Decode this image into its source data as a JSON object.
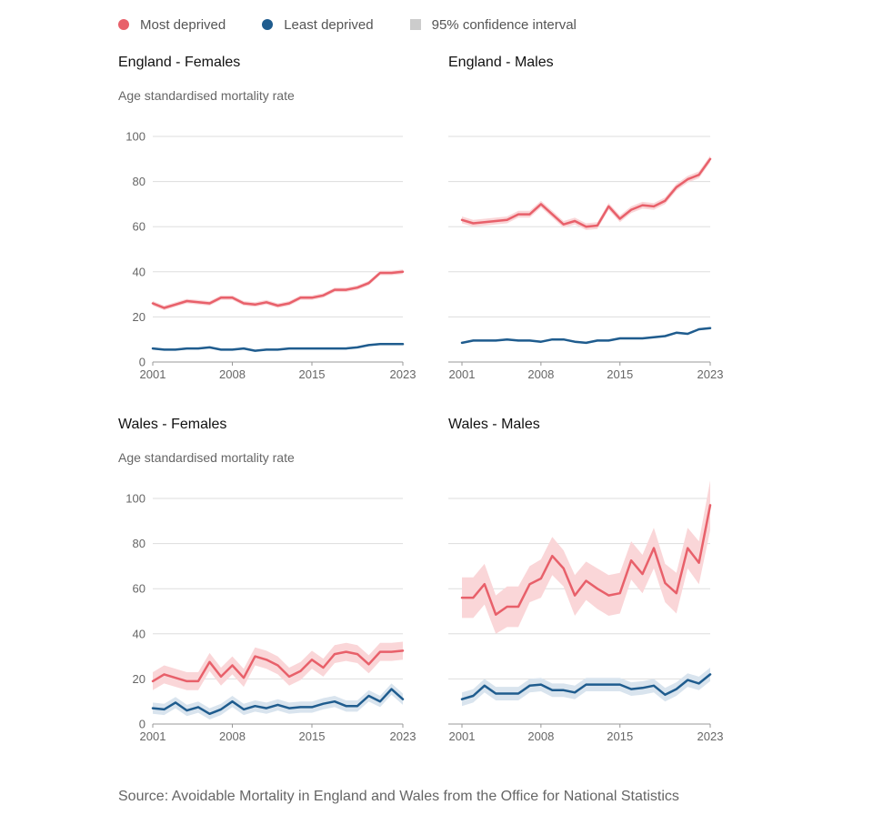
{
  "legend": {
    "items": [
      {
        "label": "Most deprived",
        "color": "#E8606A",
        "shape": "circle"
      },
      {
        "label": "Least deprived",
        "color": "#1F5C8E",
        "shape": "circle"
      },
      {
        "label": "95% confidence interval",
        "color": "#CCCCCC",
        "shape": "square"
      }
    ]
  },
  "colors": {
    "most_line": "#E8606A",
    "most_band": "#FAD6D8",
    "least_line": "#1F5C8E",
    "least_band": "#D9E4EE",
    "grid": "#DDDDDD",
    "axis": "#999999"
  },
  "source": "Source: Avoidable Mortality in England and Wales from the Office for National Statistics",
  "chart_data": [
    {
      "type": "line",
      "title": "England - Females",
      "ylabel": "Age standardised mortality rate",
      "ylim": [
        0,
        100
      ],
      "yticks": [
        0,
        20,
        40,
        60,
        80,
        100
      ],
      "xlim": [
        2001,
        2023
      ],
      "xticks": [
        "2001",
        "2008",
        "2015",
        "2023"
      ],
      "x": [
        2001,
        2002,
        2003,
        2004,
        2005,
        2006,
        2007,
        2008,
        2009,
        2010,
        2011,
        2012,
        2013,
        2014,
        2015,
        2016,
        2017,
        2018,
        2019,
        2020,
        2021,
        2022,
        2023
      ],
      "series": [
        {
          "name": "Most deprived",
          "values": [
            26,
            24,
            25.5,
            27,
            26.5,
            26,
            28.5,
            28.5,
            26,
            25.5,
            26.5,
            25,
            26,
            28.5,
            28.5,
            29.5,
            32,
            32,
            33,
            35,
            39.5,
            39.5,
            40
          ],
          "lower": [
            25,
            23,
            24.5,
            26,
            25.5,
            25,
            27.5,
            27.5,
            25,
            24.5,
            25.5,
            24,
            25,
            27.5,
            27.5,
            28.5,
            31,
            31,
            32,
            34,
            38.5,
            38.5,
            39
          ],
          "upper": [
            27,
            25,
            26.5,
            28,
            27.5,
            27,
            29.5,
            29.5,
            27,
            26.5,
            27.5,
            26,
            27,
            29.5,
            29.5,
            30.5,
            33,
            33,
            34,
            36,
            40.5,
            40.5,
            41
          ]
        },
        {
          "name": "Least deprived",
          "values": [
            6,
            5.5,
            5.5,
            6,
            6,
            6.5,
            5.5,
            5.5,
            6,
            5,
            5.5,
            5.5,
            6,
            6,
            6,
            6,
            6,
            6,
            6.5,
            7.5,
            8,
            8,
            8
          ],
          "lower": [
            5.5,
            5,
            5,
            5.5,
            5.5,
            6,
            5,
            5,
            5.5,
            4.5,
            5,
            5,
            5.5,
            5.5,
            5.5,
            5.5,
            5.5,
            5.5,
            6,
            7,
            7.5,
            7.5,
            7.5
          ],
          "upper": [
            6.5,
            6,
            6,
            6.5,
            6.5,
            7,
            6,
            6,
            6.5,
            5.5,
            6,
            6,
            6.5,
            6.5,
            6.5,
            6.5,
            6.5,
            6.5,
            7,
            8,
            8.5,
            8.5,
            8.5
          ]
        }
      ]
    },
    {
      "type": "line",
      "title": "England - Males",
      "ylabel": "",
      "ylim": [
        0,
        100
      ],
      "yticks": [
        0,
        20,
        40,
        60,
        80,
        100
      ],
      "xlim": [
        2001,
        2023
      ],
      "xticks": [
        "2001",
        "2008",
        "2015",
        "2023"
      ],
      "x": [
        2001,
        2002,
        2003,
        2004,
        2005,
        2006,
        2007,
        2008,
        2009,
        2010,
        2011,
        2012,
        2013,
        2014,
        2015,
        2016,
        2017,
        2018,
        2019,
        2020,
        2021,
        2022,
        2023
      ],
      "series": [
        {
          "name": "Most deprived",
          "values": [
            63,
            61.5,
            62,
            62.5,
            63,
            65.5,
            65.5,
            70,
            65.5,
            61,
            62.5,
            60,
            60.5,
            69,
            63.5,
            67.5,
            69.5,
            69,
            71.5,
            77.5,
            81,
            83,
            90
          ],
          "lower": [
            61.5,
            60,
            60.5,
            61,
            61.5,
            64,
            64,
            68.5,
            64,
            59.5,
            61,
            58.5,
            59,
            67.5,
            62,
            66,
            68,
            67.5,
            70,
            76,
            79.5,
            81.5,
            88.5
          ],
          "upper": [
            64.5,
            63,
            63.5,
            64,
            64.5,
            67,
            67,
            71.5,
            67,
            62.5,
            64,
            61.5,
            62,
            70.5,
            65,
            69,
            71,
            70.5,
            73,
            79,
            82.5,
            84.5,
            91.5
          ]
        },
        {
          "name": "Least deprived",
          "values": [
            8.5,
            9.5,
            9.5,
            9.5,
            10,
            9.5,
            9.5,
            9,
            10,
            10,
            9,
            8.5,
            9.5,
            9.5,
            10.5,
            10.5,
            10.5,
            11,
            11.5,
            13,
            12.5,
            14.5,
            15
          ],
          "lower": [
            8,
            9,
            9,
            9,
            9.5,
            9,
            9,
            8.5,
            9.5,
            9.5,
            8.5,
            8,
            9,
            9,
            10,
            10,
            10,
            10.5,
            11,
            12.5,
            12,
            14,
            14.5
          ],
          "upper": [
            9,
            10,
            10,
            10,
            10.5,
            10,
            10,
            9.5,
            10.5,
            10.5,
            9.5,
            9,
            10,
            10,
            11,
            11,
            11,
            11.5,
            12,
            13.5,
            13,
            15,
            15.5
          ]
        }
      ]
    },
    {
      "type": "line",
      "title": "Wales - Females",
      "ylabel": "Age standardised mortality rate",
      "ylim": [
        0,
        100
      ],
      "yticks": [
        0,
        20,
        40,
        60,
        80,
        100
      ],
      "xlim": [
        2001,
        2023
      ],
      "xticks": [
        "2001",
        "2008",
        "2015",
        "2023"
      ],
      "x": [
        2001,
        2002,
        2003,
        2004,
        2005,
        2006,
        2007,
        2008,
        2009,
        2010,
        2011,
        2012,
        2013,
        2014,
        2015,
        2016,
        2017,
        2018,
        2019,
        2020,
        2021,
        2022,
        2023
      ],
      "series": [
        {
          "name": "Most deprived",
          "values": [
            19,
            22,
            20.5,
            19,
            19,
            27.5,
            21,
            26,
            20.5,
            30,
            28.5,
            26,
            21,
            23.5,
            28.5,
            25,
            31,
            32,
            31,
            26.5,
            32,
            32,
            32.5
          ],
          "lower": [
            15,
            18,
            16.5,
            15,
            15,
            23.5,
            17,
            22,
            16.5,
            26,
            24.5,
            22,
            17,
            19.5,
            24.5,
            21,
            27,
            28,
            27,
            22.5,
            28,
            28,
            28.5
          ],
          "upper": [
            23,
            26,
            24.5,
            23,
            23,
            31.5,
            25,
            30,
            24.5,
            34,
            32.5,
            30,
            25,
            27.5,
            32.5,
            29,
            35,
            36,
            35,
            30.5,
            36,
            36,
            36.5
          ]
        },
        {
          "name": "Least deprived",
          "values": [
            7,
            6.5,
            9.5,
            6,
            7.5,
            4.5,
            6.5,
            10,
            6.5,
            8,
            7,
            8.5,
            7,
            7.5,
            7.5,
            9,
            10,
            8,
            8,
            12.5,
            10,
            15.5,
            11
          ],
          "lower": [
            4.5,
            4,
            7,
            3.5,
            5,
            2,
            4,
            7.5,
            4,
            5.5,
            4.5,
            6,
            4.5,
            5,
            5,
            6.5,
            7.5,
            5.5,
            5.5,
            10,
            7.5,
            13,
            8.5
          ],
          "upper": [
            9.5,
            9,
            12,
            8.5,
            10,
            7,
            9,
            12.5,
            9,
            10.5,
            9.5,
            11,
            9.5,
            10,
            10,
            11.5,
            12.5,
            10.5,
            10.5,
            15,
            12.5,
            18,
            13.5
          ]
        }
      ]
    },
    {
      "type": "line",
      "title": "Wales - Males",
      "ylabel": "",
      "ylim": [
        0,
        100
      ],
      "yticks": [
        0,
        20,
        40,
        60,
        80,
        100
      ],
      "xlim": [
        2001,
        2023
      ],
      "xticks": [
        "2001",
        "2008",
        "2015",
        "2023"
      ],
      "x": [
        2001,
        2002,
        2003,
        2004,
        2005,
        2006,
        2007,
        2008,
        2009,
        2010,
        2011,
        2012,
        2013,
        2014,
        2015,
        2016,
        2017,
        2018,
        2019,
        2020,
        2021,
        2022,
        2023
      ],
      "series": [
        {
          "name": "Most deprived",
          "values": [
            56,
            56,
            62,
            48.5,
            52,
            52,
            62,
            64.5,
            74.5,
            69,
            57,
            63.5,
            60,
            57,
            58,
            72.5,
            66.5,
            78,
            62.5,
            58,
            78,
            71.5,
            97
          ],
          "lower": [
            47,
            47,
            53,
            40,
            43,
            43,
            54,
            56,
            66,
            61,
            48,
            55,
            51,
            48,
            49,
            64,
            58,
            69,
            54,
            49,
            69,
            62,
            86
          ],
          "upper": [
            65,
            65,
            71,
            57,
            61,
            61,
            70,
            73,
            83,
            77,
            66,
            72,
            69,
            66,
            67,
            81,
            75,
            87,
            71,
            67,
            87,
            81,
            108
          ]
        },
        {
          "name": "Least deprived",
          "values": [
            11,
            12.5,
            17,
            13.5,
            13.5,
            13.5,
            17,
            17.5,
            15,
            15,
            14,
            17.5,
            17.5,
            17.5,
            17.5,
            15.5,
            16,
            17,
            13,
            15.5,
            19.5,
            18,
            22
          ],
          "lower": [
            8,
            9.5,
            14,
            10.5,
            10.5,
            10.5,
            14,
            14.5,
            12,
            12,
            11,
            14.5,
            14.5,
            14.5,
            14.5,
            12.5,
            13,
            14,
            10,
            12.5,
            16.5,
            15,
            19
          ],
          "upper": [
            14,
            15.5,
            20,
            16.5,
            16.5,
            16.5,
            20,
            20.5,
            18,
            18,
            17,
            20.5,
            20.5,
            20.5,
            20.5,
            18.5,
            19,
            20,
            16,
            18.5,
            22.5,
            21,
            25
          ]
        }
      ]
    }
  ]
}
